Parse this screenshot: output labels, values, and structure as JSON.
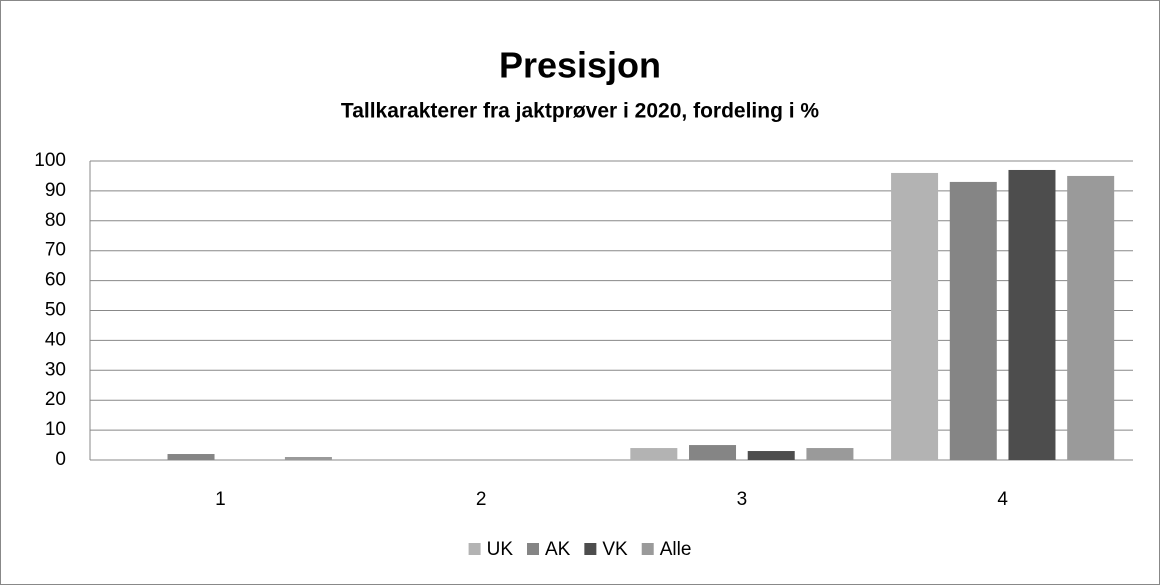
{
  "chart_data": {
    "type": "bar",
    "title": "Presisjon",
    "subtitle": "Tallkarakterer fra jaktprøver i 2020, fordeling i %",
    "categories": [
      "1",
      "2",
      "3",
      "4"
    ],
    "series": [
      {
        "name": "UK",
        "color": "#b3b3b3",
        "values": [
          0,
          0,
          4,
          96
        ]
      },
      {
        "name": "AK",
        "color": "#858585",
        "values": [
          2,
          0,
          5,
          93
        ]
      },
      {
        "name": "VK",
        "color": "#4d4d4d",
        "values": [
          0,
          0,
          3,
          97
        ]
      },
      {
        "name": "Alle",
        "color": "#9a9a9a",
        "values": [
          1,
          0,
          4,
          95
        ]
      }
    ],
    "ylim": [
      0,
      100
    ],
    "yticks": [
      0,
      10,
      20,
      30,
      40,
      50,
      60,
      70,
      80,
      90,
      100
    ],
    "grid": true,
    "legend": "bottom"
  }
}
